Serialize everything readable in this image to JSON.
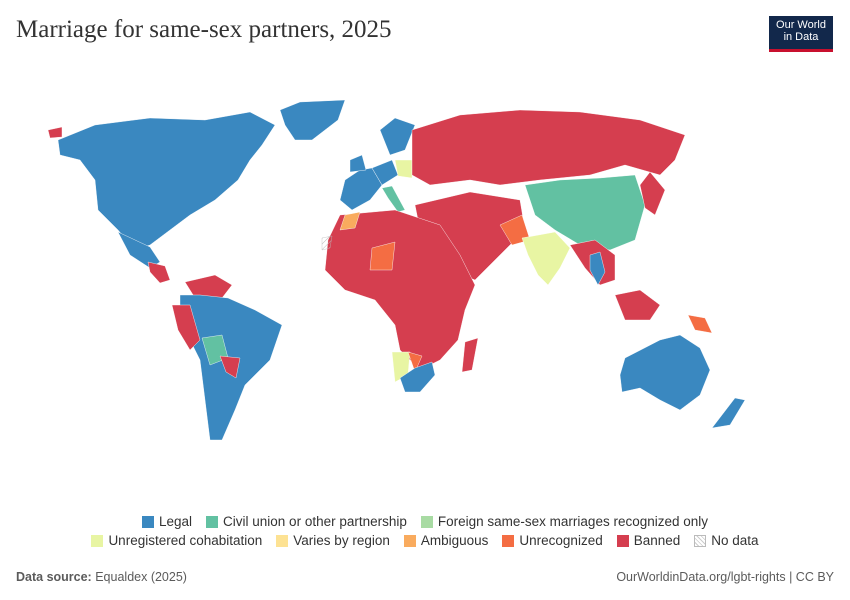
{
  "header": {
    "title": "Marriage for same-sex partners, 2025",
    "logo": [
      "Our World",
      "in Data"
    ]
  },
  "legend": [
    {
      "name": "Legal",
      "color": "#3a88c0"
    },
    {
      "name": "Civil union or other partnership",
      "color": "#62c1a2"
    },
    {
      "name": "Foreign same-sex marriages recognized only",
      "color": "#a8dba3"
    },
    {
      "name": "Unregistered cohabitation",
      "color": "#e8f5a3"
    },
    {
      "name": "Varies by region",
      "color": "#fde293"
    },
    {
      "name": "Ambiguous",
      "color": "#f9ab5e"
    },
    {
      "name": "Unrecognized",
      "color": "#f46d43"
    },
    {
      "name": "Banned",
      "color": "#d53e4f"
    },
    {
      "name": "No data",
      "color": "#ffffff"
    }
  ],
  "footer": {
    "source_label": "Data source:",
    "source": "Equaldex (2025)",
    "url": "OurWorldinData.org/lgbt-rights | CC BY"
  }
}
